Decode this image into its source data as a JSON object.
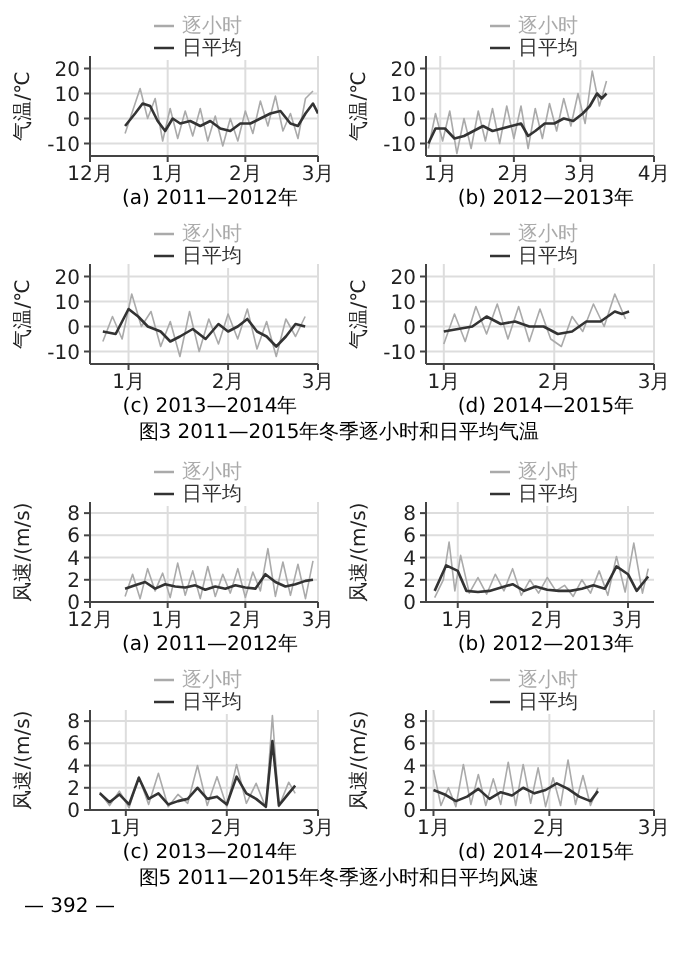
{
  "chart_data": [
    {
      "type": "line",
      "xlabel": "(a) 2011—2012年",
      "ylabel": "气温/℃",
      "xlim": [
        "2011-12-01",
        "2012-03-01"
      ],
      "xticks": [
        {
          "value": "2011-12-01",
          "label": "12月"
        },
        {
          "value": "2012-01-01",
          "label": "1月"
        },
        {
          "value": "2012-02-01",
          "label": "2月"
        },
        {
          "value": "2012-03-01",
          "label": "3月"
        }
      ],
      "ylim": [
        -15,
        25
      ],
      "yticks": [
        -10,
        0,
        10,
        20
      ],
      "grid": true,
      "legend": "top",
      "series": [
        {
          "name": "逐小时",
          "color": "#aaaaaa",
          "x": [
            "2011-12-15",
            "2011-12-18",
            "2011-12-21",
            "2011-12-24",
            "2011-12-27",
            "2011-12-30",
            "2012-01-02",
            "2012-01-05",
            "2012-01-08",
            "2012-01-11",
            "2012-01-14",
            "2012-01-17",
            "2012-01-20",
            "2012-01-23",
            "2012-01-26",
            "2012-01-29",
            "2012-02-01",
            "2012-02-04",
            "2012-02-07",
            "2012-02-10",
            "2012-02-13",
            "2012-02-16",
            "2012-02-19",
            "2012-02-22",
            "2012-02-25",
            "2012-02-28"
          ],
          "values": [
            -6,
            3,
            12,
            0,
            8,
            -9,
            4,
            -8,
            3,
            -7,
            4,
            -9,
            1,
            -11,
            0,
            -9,
            3,
            -6,
            7,
            -3,
            9,
            -5,
            2,
            -8,
            8,
            11
          ]
        },
        {
          "name": "日平均",
          "color": "#333333",
          "x": [
            "2011-12-15",
            "2011-12-19",
            "2011-12-22",
            "2011-12-25",
            "2011-12-28",
            "2011-12-31",
            "2012-01-03",
            "2012-01-06",
            "2012-01-10",
            "2012-01-14",
            "2012-01-18",
            "2012-01-22",
            "2012-01-26",
            "2012-01-30",
            "2012-02-03",
            "2012-02-07",
            "2012-02-11",
            "2012-02-15",
            "2012-02-19",
            "2012-02-22",
            "2012-02-25",
            "2012-02-28",
            "2012-03-01"
          ],
          "values": [
            -3,
            2,
            6,
            5,
            -1,
            -5,
            0,
            -2,
            -1,
            -3,
            -1,
            -4,
            -5,
            -2,
            -2,
            0,
            2,
            3,
            -2,
            -3,
            2,
            6,
            2
          ]
        }
      ]
    },
    {
      "type": "line",
      "xlabel": "(b) 2012—2013年",
      "ylabel": "气温/℃",
      "xlim": [
        "2012-12-26",
        "2013-04-01"
      ],
      "xticks": [
        {
          "value": "2013-01-01",
          "label": "1月"
        },
        {
          "value": "2013-02-01",
          "label": "2月"
        },
        {
          "value": "2013-03-01",
          "label": "3月"
        },
        {
          "value": "2013-04-01",
          "label": "4月"
        }
      ],
      "ylim": [
        -15,
        25
      ],
      "yticks": [
        -10,
        0,
        10,
        20
      ],
      "grid": true,
      "legend": "top",
      "series": [
        {
          "name": "逐小时",
          "color": "#aaaaaa",
          "x": [
            "2012-12-27",
            "2012-12-30",
            "2013-01-02",
            "2013-01-05",
            "2013-01-08",
            "2013-01-11",
            "2013-01-14",
            "2013-01-17",
            "2013-01-20",
            "2013-01-23",
            "2013-01-26",
            "2013-01-29",
            "2013-02-01",
            "2013-02-04",
            "2013-02-07",
            "2013-02-10",
            "2013-02-13",
            "2013-02-16",
            "2013-02-19",
            "2013-02-22",
            "2013-02-25",
            "2013-02-28",
            "2013-03-03",
            "2013-03-06",
            "2013-03-09",
            "2013-03-12"
          ],
          "values": [
            -12,
            2,
            -9,
            3,
            -14,
            0,
            -12,
            3,
            -9,
            4,
            -10,
            5,
            -8,
            5,
            -12,
            4,
            -8,
            6,
            -5,
            8,
            -3,
            10,
            -2,
            19,
            5,
            15
          ]
        },
        {
          "name": "日平均",
          "color": "#333333",
          "x": [
            "2012-12-27",
            "2012-12-30",
            "2013-01-03",
            "2013-01-07",
            "2013-01-11",
            "2013-01-15",
            "2013-01-19",
            "2013-01-23",
            "2013-01-27",
            "2013-01-31",
            "2013-02-04",
            "2013-02-07",
            "2013-02-10",
            "2013-02-14",
            "2013-02-18",
            "2013-02-22",
            "2013-02-26",
            "2013-03-02",
            "2013-03-05",
            "2013-03-08",
            "2013-03-10",
            "2013-03-12"
          ],
          "values": [
            -10,
            -4,
            -4,
            -8,
            -7,
            -5,
            -3,
            -5,
            -4,
            -3,
            -2,
            -7,
            -5,
            -2,
            -2,
            0,
            -1,
            2,
            5,
            10,
            8,
            10
          ]
        }
      ]
    },
    {
      "type": "line",
      "xlabel": "(c) 2013—2014年",
      "ylabel": "气温/℃",
      "xlim": [
        "2013-12-20",
        "2014-03-01"
      ],
      "xticks": [
        {
          "value": "2014-01-01",
          "label": "1月"
        },
        {
          "value": "2014-02-01",
          "label": "2月"
        },
        {
          "value": "2014-03-01",
          "label": "3月"
        }
      ],
      "ylim": [
        -15,
        25
      ],
      "yticks": [
        -10,
        0,
        10,
        20
      ],
      "grid": true,
      "legend": "top",
      "series": [
        {
          "name": "逐小时",
          "color": "#aaaaaa",
          "x": [
            "2013-12-24",
            "2013-12-27",
            "2013-12-30",
            "2014-01-02",
            "2014-01-05",
            "2014-01-08",
            "2014-01-11",
            "2014-01-14",
            "2014-01-17",
            "2014-01-20",
            "2014-01-23",
            "2014-01-26",
            "2014-01-29",
            "2014-02-01",
            "2014-02-04",
            "2014-02-07",
            "2014-02-10",
            "2014-02-13",
            "2014-02-16",
            "2014-02-19",
            "2014-02-22",
            "2014-02-25"
          ],
          "values": [
            -6,
            4,
            -5,
            13,
            0,
            6,
            -8,
            2,
            -12,
            6,
            -10,
            3,
            -7,
            5,
            -5,
            7,
            -9,
            2,
            -12,
            3,
            -4,
            4
          ]
        },
        {
          "name": "日平均",
          "color": "#333333",
          "x": [
            "2013-12-24",
            "2013-12-28",
            "2014-01-01",
            "2014-01-04",
            "2014-01-07",
            "2014-01-11",
            "2014-01-14",
            "2014-01-17",
            "2014-01-21",
            "2014-01-25",
            "2014-01-29",
            "2014-02-01",
            "2014-02-04",
            "2014-02-07",
            "2014-02-10",
            "2014-02-13",
            "2014-02-16",
            "2014-02-19",
            "2014-02-22",
            "2014-02-25"
          ],
          "values": [
            -2,
            -3,
            7,
            4,
            0,
            -2,
            -6,
            -4,
            -1,
            -5,
            1,
            -2,
            0,
            3,
            -2,
            -4,
            -8,
            -4,
            1,
            0
          ]
        }
      ]
    },
    {
      "type": "line",
      "xlabel": "(d) 2014—2015年",
      "ylabel": "气温/℃",
      "xlim": [
        "2014-12-27",
        "2015-03-01"
      ],
      "xticks": [
        {
          "value": "2015-01-01",
          "label": "1月"
        },
        {
          "value": "2015-02-01",
          "label": "2月"
        },
        {
          "value": "2015-03-01",
          "label": "3月"
        }
      ],
      "ylim": [
        -15,
        25
      ],
      "yticks": [
        -10,
        0,
        10,
        20
      ],
      "grid": true,
      "legend": "top",
      "annotations": [
        "图3 2011—2015年冬季逐小时和日平均气温"
      ],
      "series": [
        {
          "name": "逐小时",
          "color": "#aaaaaa",
          "x": [
            "2015-01-01",
            "2015-01-04",
            "2015-01-07",
            "2015-01-10",
            "2015-01-13",
            "2015-01-16",
            "2015-01-19",
            "2015-01-22",
            "2015-01-25",
            "2015-01-28",
            "2015-01-31",
            "2015-02-03",
            "2015-02-06",
            "2015-02-09",
            "2015-02-12",
            "2015-02-15",
            "2015-02-18",
            "2015-02-21"
          ],
          "values": [
            -7,
            5,
            -6,
            8,
            -3,
            9,
            -5,
            8,
            -6,
            7,
            -5,
            -8,
            4,
            -2,
            9,
            0,
            13,
            3
          ]
        },
        {
          "name": "日平均",
          "color": "#333333",
          "x": [
            "2015-01-01",
            "2015-01-05",
            "2015-01-09",
            "2015-01-13",
            "2015-01-17",
            "2015-01-21",
            "2015-01-25",
            "2015-01-29",
            "2015-02-02",
            "2015-02-06",
            "2015-02-10",
            "2015-02-14",
            "2015-02-18",
            "2015-02-20",
            "2015-02-22"
          ],
          "values": [
            -2,
            -1,
            0,
            4,
            1,
            2,
            0,
            0,
            -3,
            -2,
            2,
            2,
            6,
            5,
            6
          ]
        }
      ]
    },
    {
      "type": "line",
      "xlabel": "(a) 2011—2012年",
      "ylabel": "风速/(m/s)",
      "xlim": [
        "2011-12-01",
        "2012-03-01"
      ],
      "xticks": [
        {
          "value": "2011-12-01",
          "label": "12月"
        },
        {
          "value": "2012-01-01",
          "label": "1月"
        },
        {
          "value": "2012-02-01",
          "label": "2月"
        },
        {
          "value": "2012-03-01",
          "label": "3月"
        }
      ],
      "ylim": [
        0,
        9
      ],
      "yticks": [
        0,
        2,
        4,
        6,
        8
      ],
      "grid": true,
      "legend": "top",
      "series": [
        {
          "name": "逐小时",
          "color": "#aaaaaa",
          "x": [
            "2011-12-15",
            "2011-12-18",
            "2011-12-21",
            "2011-12-24",
            "2011-12-27",
            "2011-12-30",
            "2012-01-02",
            "2012-01-05",
            "2012-01-08",
            "2012-01-11",
            "2012-01-14",
            "2012-01-17",
            "2012-01-20",
            "2012-01-23",
            "2012-01-26",
            "2012-01-29",
            "2012-02-01",
            "2012-02-04",
            "2012-02-07",
            "2012-02-10",
            "2012-02-13",
            "2012-02-16",
            "2012-02-19",
            "2012-02-22",
            "2012-02-25",
            "2012-02-28"
          ],
          "values": [
            0.5,
            2.5,
            0.3,
            3,
            1,
            2.6,
            0.4,
            3.5,
            0.6,
            2.8,
            0.3,
            3.2,
            0.5,
            2.5,
            0.8,
            3,
            0.4,
            2.7,
            1,
            4.8,
            0.5,
            3.6,
            0.6,
            3.4,
            0.3,
            3.7
          ]
        },
        {
          "name": "日平均",
          "color": "#333333",
          "x": [
            "2011-12-15",
            "2011-12-19",
            "2011-12-23",
            "2011-12-27",
            "2011-12-31",
            "2012-01-04",
            "2012-01-08",
            "2012-01-12",
            "2012-01-16",
            "2012-01-20",
            "2012-01-24",
            "2012-01-28",
            "2012-02-01",
            "2012-02-05",
            "2012-02-09",
            "2012-02-13",
            "2012-02-17",
            "2012-02-21",
            "2012-02-25",
            "2012-02-28"
          ],
          "values": [
            1.2,
            1.5,
            1.8,
            1.2,
            1.6,
            1.4,
            1.3,
            1.5,
            1.1,
            1.4,
            1.2,
            1.5,
            1.3,
            1.2,
            2.5,
            1.8,
            1.4,
            1.6,
            1.9,
            2
          ]
        }
      ]
    },
    {
      "type": "line",
      "xlabel": "(b) 2012—2013年",
      "ylabel": "风速/(m/s)",
      "xlim": [
        "2012-12-21",
        "2013-03-10"
      ],
      "xticks": [
        {
          "value": "2013-01-01",
          "label": "1月"
        },
        {
          "value": "2013-02-01",
          "label": "2月"
        },
        {
          "value": "2013-03-01",
          "label": "3月"
        }
      ],
      "ylim": [
        0,
        9
      ],
      "yticks": [
        0,
        2,
        4,
        6,
        8
      ],
      "grid": true,
      "legend": "top",
      "series": [
        {
          "name": "逐小时",
          "color": "#aaaaaa",
          "x": [
            "2012-12-24",
            "2012-12-27",
            "2012-12-29",
            "2012-12-31",
            "2013-01-02",
            "2013-01-05",
            "2013-01-08",
            "2013-01-11",
            "2013-01-14",
            "2013-01-17",
            "2013-01-20",
            "2013-01-23",
            "2013-01-26",
            "2013-01-29",
            "2013-02-01",
            "2013-02-04",
            "2013-02-07",
            "2013-02-10",
            "2013-02-13",
            "2013-02-16",
            "2013-02-19",
            "2013-02-22",
            "2013-02-25",
            "2013-02-28",
            "2013-03-03",
            "2013-03-06",
            "2013-03-08"
          ],
          "values": [
            0.4,
            2,
            5.4,
            1,
            4.2,
            0.8,
            2.2,
            0.7,
            2.5,
            1,
            3,
            0.6,
            2,
            0.8,
            2.2,
            1,
            1.5,
            0.5,
            2,
            0.8,
            2.8,
            0.6,
            4.1,
            0.9,
            5.3,
            0.8,
            3
          ]
        },
        {
          "name": "日平均",
          "color": "#333333",
          "x": [
            "2012-12-24",
            "2012-12-28",
            "2013-01-01",
            "2013-01-04",
            "2013-01-08",
            "2013-01-12",
            "2013-01-16",
            "2013-01-20",
            "2013-01-24",
            "2013-01-28",
            "2013-02-01",
            "2013-02-05",
            "2013-02-09",
            "2013-02-13",
            "2013-02-17",
            "2013-02-21",
            "2013-02-25",
            "2013-03-01",
            "2013-03-04",
            "2013-03-08"
          ],
          "values": [
            1,
            3.3,
            2.8,
            1,
            0.9,
            1,
            1.3,
            1.6,
            1,
            1.4,
            1.1,
            1,
            1,
            1.2,
            1.5,
            1.2,
            3.2,
            2.5,
            1,
            2.3
          ]
        }
      ]
    },
    {
      "type": "line",
      "xlabel": "(c) 2013—2014年",
      "ylabel": "风速/(m/s)",
      "xlim": [
        "2013-12-21",
        "2014-03-01"
      ],
      "xticks": [
        {
          "value": "2014-01-01",
          "label": "1月"
        },
        {
          "value": "2014-02-01",
          "label": "2月"
        },
        {
          "value": "2014-03-01",
          "label": "3月"
        }
      ],
      "ylim": [
        0,
        9
      ],
      "yticks": [
        0,
        2,
        4,
        6,
        8
      ],
      "grid": true,
      "legend": "top",
      "series": [
        {
          "name": "逐小时",
          "color": "#aaaaaa",
          "x": [
            "2013-12-24",
            "2013-12-27",
            "2013-12-30",
            "2014-01-02",
            "2014-01-05",
            "2014-01-08",
            "2014-01-11",
            "2014-01-14",
            "2014-01-17",
            "2014-01-20",
            "2014-01-23",
            "2014-01-26",
            "2014-01-29",
            "2014-02-01",
            "2014-02-04",
            "2014-02-07",
            "2014-02-10",
            "2014-02-13",
            "2014-02-15",
            "2014-02-17",
            "2014-02-20",
            "2014-02-22"
          ],
          "values": [
            1.6,
            0.4,
            1.7,
            0.2,
            3,
            0.5,
            3.3,
            0.3,
            1.4,
            0.6,
            4,
            0.4,
            3,
            0.3,
            4.1,
            0.6,
            2.4,
            0.2,
            8.5,
            0.3,
            2.5,
            1.5
          ]
        },
        {
          "name": "日平均",
          "color": "#333333",
          "x": [
            "2013-12-24",
            "2013-12-27",
            "2013-12-30",
            "2014-01-02",
            "2014-01-05",
            "2014-01-08",
            "2014-01-11",
            "2014-01-14",
            "2014-01-17",
            "2014-01-20",
            "2014-01-23",
            "2014-01-26",
            "2014-01-29",
            "2014-02-01",
            "2014-02-04",
            "2014-02-07",
            "2014-02-10",
            "2014-02-13",
            "2014-02-15",
            "2014-02-17",
            "2014-02-20",
            "2014-02-22"
          ],
          "values": [
            1.5,
            0.7,
            1.4,
            0.5,
            2.9,
            1,
            1.5,
            0.5,
            0.8,
            1,
            2,
            1,
            1.2,
            0.5,
            3,
            1.5,
            1,
            0.3,
            6.2,
            0.4,
            1.5,
            2.2
          ]
        }
      ]
    },
    {
      "type": "line",
      "xlabel": "(d) 2014—2015年",
      "ylabel": "风速/(m/s)",
      "xlim": [
        "2014-12-30",
        "2015-03-01"
      ],
      "xticks": [
        {
          "value": "2015-01-01",
          "label": "1月"
        },
        {
          "value": "2015-02-01",
          "label": "2月"
        },
        {
          "value": "2015-03-01",
          "label": "3月"
        }
      ],
      "ylim": [
        0,
        9
      ],
      "yticks": [
        0,
        2,
        4,
        6,
        8
      ],
      "grid": true,
      "legend": "top",
      "annotations": [
        "图5 2011—2015年冬季逐小时和日平均风速",
        "— 392 —"
      ],
      "series": [
        {
          "name": "逐小时",
          "color": "#aaaaaa",
          "x": [
            "2015-01-01",
            "2015-01-03",
            "2015-01-05",
            "2015-01-07",
            "2015-01-09",
            "2015-01-11",
            "2015-01-13",
            "2015-01-15",
            "2015-01-17",
            "2015-01-19",
            "2015-01-21",
            "2015-01-23",
            "2015-01-25",
            "2015-01-27",
            "2015-01-29",
            "2015-01-31",
            "2015-02-02",
            "2015-02-04",
            "2015-02-06",
            "2015-02-08",
            "2015-02-10",
            "2015-02-12",
            "2015-02-14"
          ],
          "values": [
            3.6,
            0.4,
            2,
            0.3,
            4.1,
            0.5,
            3.2,
            0.4,
            2.8,
            0.5,
            4.3,
            0.4,
            4.1,
            0.6,
            3.8,
            0.3,
            2.9,
            0.4,
            4.5,
            0.5,
            3.1,
            0.4,
            2
          ]
        },
        {
          "name": "日平均",
          "color": "#333333",
          "x": [
            "2015-01-01",
            "2015-01-04",
            "2015-01-07",
            "2015-01-10",
            "2015-01-13",
            "2015-01-16",
            "2015-01-19",
            "2015-01-22",
            "2015-01-25",
            "2015-01-28",
            "2015-01-31",
            "2015-02-03",
            "2015-02-06",
            "2015-02-09",
            "2015-02-12",
            "2015-02-14"
          ],
          "values": [
            1.8,
            1.4,
            0.8,
            1.2,
            1.9,
            1,
            1.6,
            1.3,
            2,
            1.5,
            1.8,
            2.4,
            1.9,
            1.2,
            0.8,
            1.7
          ]
        }
      ]
    }
  ]
}
